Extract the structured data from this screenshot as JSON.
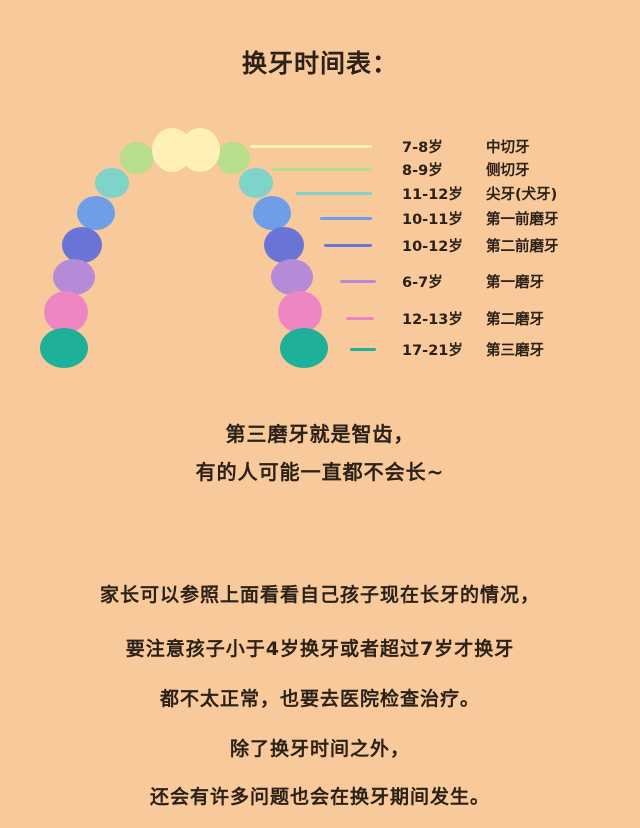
{
  "title": "换牙时间表：",
  "legend": [
    {
      "age": "7-8岁",
      "name": "中切牙",
      "color": "#fff0b8"
    },
    {
      "age": "8-9岁",
      "name": "侧切牙",
      "color": "#b8de8c"
    },
    {
      "age": "11-12岁",
      "name": "尖牙(犬牙)",
      "color": "#7fd3c9"
    },
    {
      "age": "10-11岁",
      "name": "第一前磨牙",
      "color": "#6f9ee6"
    },
    {
      "age": "10-12岁",
      "name": "第二前磨牙",
      "color": "#6a73d6"
    },
    {
      "age": "6-7岁",
      "name": "第一磨牙",
      "color": "#b58ad6"
    },
    {
      "age": "12-13岁",
      "name": "第二磨牙",
      "color": "#ef86c4"
    },
    {
      "age": "17-21岁",
      "name": "第三磨牙",
      "color": "#1fb09a"
    }
  ],
  "note": {
    "line1": "第三磨牙就是智齿，",
    "line2": "有的人可能一直都不会长~"
  },
  "paragraph": [
    "家长可以参照上面看看自己孩子现在长牙的情况，",
    "要注意孩子小于4岁换牙或者超过7岁才换牙",
    "都不太正常，也要去医院检查治疗。",
    "除了换牙时间之外，",
    "还会有许多问题也会在换牙期间发生。"
  ]
}
